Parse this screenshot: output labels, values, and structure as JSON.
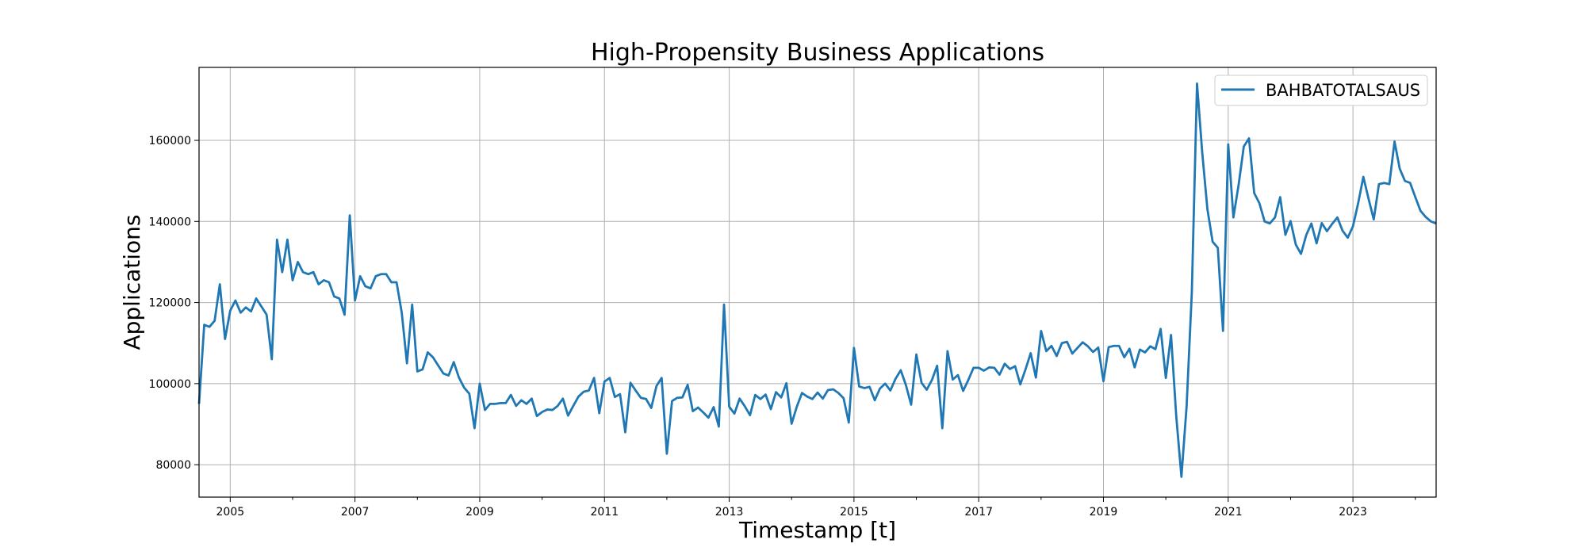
{
  "chart_data": {
    "type": "line",
    "title": "High-Propensity Business Applications",
    "xlabel": "Timestamp [t]",
    "ylabel": "Applications",
    "grid": true,
    "legend_placement": "top-right",
    "xlim": [
      "2004-07",
      "2024-05"
    ],
    "ylim": [
      72000,
      178000
    ],
    "x_ticks": [
      "2005",
      "2007",
      "2009",
      "2011",
      "2013",
      "2015",
      "2017",
      "2019",
      "2021",
      "2023"
    ],
    "y_ticks": [
      80000,
      100000,
      120000,
      140000,
      160000
    ],
    "series": [
      {
        "name": "BAHBATOTALSAUS",
        "color": "#1f77b4",
        "x": [
          "2004-07",
          "2004-08",
          "2004-09",
          "2004-10",
          "2004-11",
          "2004-12",
          "2005-01",
          "2005-02",
          "2005-03",
          "2005-04",
          "2005-05",
          "2005-06",
          "2005-07",
          "2005-08",
          "2005-09",
          "2005-10",
          "2005-11",
          "2005-12",
          "2006-01",
          "2006-02",
          "2006-03",
          "2006-04",
          "2006-05",
          "2006-06",
          "2006-07",
          "2006-08",
          "2006-09",
          "2006-10",
          "2006-11",
          "2006-12",
          "2007-01",
          "2007-02",
          "2007-03",
          "2007-04",
          "2007-05",
          "2007-06",
          "2007-07",
          "2007-08",
          "2007-09",
          "2007-10",
          "2007-11",
          "2007-12",
          "2008-01",
          "2008-02",
          "2008-03",
          "2008-04",
          "2008-05",
          "2008-06",
          "2008-07",
          "2008-08",
          "2008-09",
          "2008-10",
          "2008-11",
          "2008-12",
          "2009-01",
          "2009-02",
          "2009-03",
          "2009-04",
          "2009-05",
          "2009-06",
          "2009-07",
          "2009-08",
          "2009-09",
          "2009-10",
          "2009-11",
          "2009-12",
          "2010-01",
          "2010-02",
          "2010-03",
          "2010-04",
          "2010-05",
          "2010-06",
          "2010-07",
          "2010-08",
          "2010-09",
          "2010-10",
          "2010-11",
          "2010-12",
          "2011-01",
          "2011-02",
          "2011-03",
          "2011-04",
          "2011-05",
          "2011-06",
          "2011-07",
          "2011-08",
          "2011-09",
          "2011-10",
          "2011-11",
          "2011-12",
          "2012-01",
          "2012-02",
          "2012-03",
          "2012-04",
          "2012-05",
          "2012-06",
          "2012-07",
          "2012-08",
          "2012-09",
          "2012-10",
          "2012-11",
          "2012-12",
          "2013-01",
          "2013-02",
          "2013-03",
          "2013-04",
          "2013-05",
          "2013-06",
          "2013-07",
          "2013-08",
          "2013-09",
          "2013-10",
          "2013-11",
          "2013-12",
          "2014-01",
          "2014-02",
          "2014-03",
          "2014-04",
          "2014-05",
          "2014-06",
          "2014-07",
          "2014-08",
          "2014-09",
          "2014-10",
          "2014-11",
          "2014-12",
          "2015-01",
          "2015-02",
          "2015-03",
          "2015-04",
          "2015-05",
          "2015-06",
          "2015-07",
          "2015-08",
          "2015-09",
          "2015-10",
          "2015-11",
          "2015-12",
          "2016-01",
          "2016-02",
          "2016-03",
          "2016-04",
          "2016-05",
          "2016-06",
          "2016-07",
          "2016-08",
          "2016-09",
          "2016-10",
          "2016-11",
          "2016-12",
          "2017-01",
          "2017-02",
          "2017-03",
          "2017-04",
          "2017-05",
          "2017-06",
          "2017-07",
          "2017-08",
          "2017-09",
          "2017-10",
          "2017-11",
          "2017-12",
          "2018-01",
          "2018-02",
          "2018-03",
          "2018-04",
          "2018-05",
          "2018-06",
          "2018-07",
          "2018-08",
          "2018-09",
          "2018-10",
          "2018-11",
          "2018-12",
          "2019-01",
          "2019-02",
          "2019-03",
          "2019-04",
          "2019-05",
          "2019-06",
          "2019-07",
          "2019-08",
          "2019-09",
          "2019-10",
          "2019-11",
          "2019-12",
          "2020-01",
          "2020-02",
          "2020-03",
          "2020-04",
          "2020-05",
          "2020-06",
          "2020-07",
          "2020-08",
          "2020-09",
          "2020-10",
          "2020-11",
          "2020-12",
          "2021-01",
          "2021-02",
          "2021-03",
          "2021-04",
          "2021-05",
          "2021-06",
          "2021-07",
          "2021-08",
          "2021-09",
          "2021-10",
          "2021-11",
          "2021-12",
          "2022-01",
          "2022-02",
          "2022-03",
          "2022-04",
          "2022-05",
          "2022-06",
          "2022-07",
          "2022-08",
          "2022-09",
          "2022-10",
          "2022-11",
          "2022-12",
          "2023-01",
          "2023-02",
          "2023-03",
          "2023-04",
          "2023-05",
          "2023-06",
          "2023-07",
          "2023-08",
          "2023-09",
          "2023-10",
          "2023-11",
          "2023-12",
          "2024-01",
          "2024-02",
          "2024-03",
          "2024-04",
          "2024-05"
        ],
        "values": [
          95000,
          114500,
          114000,
          115500,
          124500,
          111000,
          118000,
          120500,
          117500,
          118800,
          117800,
          121000,
          119000,
          117000,
          106000,
          135500,
          127500,
          135500,
          125500,
          130000,
          127500,
          127000,
          127500,
          124500,
          125500,
          125000,
          121500,
          121000,
          117000,
          141500,
          120500,
          126500,
          124000,
          123500,
          126500,
          127000,
          127000,
          125000,
          125000,
          117500,
          105000,
          119500,
          103000,
          103500,
          107700,
          106500,
          104500,
          102500,
          102000,
          105300,
          101500,
          99000,
          97500,
          89000,
          100000,
          93500,
          95000,
          95000,
          95200,
          95200,
          97200,
          94500,
          95900,
          95000,
          96300,
          92000,
          93000,
          93600,
          93500,
          94500,
          96300,
          92100,
          94500,
          96800,
          98000,
          98300,
          101400,
          92700,
          100500,
          101400,
          96700,
          97400,
          88000,
          100200,
          98300,
          96500,
          96200,
          94000,
          99400,
          101400,
          82700,
          95700,
          96500,
          96600,
          99700,
          93200,
          94100,
          92900,
          91600,
          94200,
          89400,
          119500,
          94300,
          92600,
          96300,
          94400,
          92200,
          97200,
          96200,
          97300,
          93700,
          97900,
          96600,
          100100,
          90100,
          94300,
          97700,
          96800,
          96200,
          97800,
          96300,
          98400,
          98600,
          97700,
          96400,
          90400,
          108800,
          99300,
          98900,
          99200,
          95900,
          98800,
          100000,
          98300,
          101200,
          103300,
          99600,
          94800,
          107200,
          100200,
          98500,
          100900,
          104400,
          89000,
          108000,
          101000,
          102100,
          98200,
          100900,
          103900,
          103900,
          103200,
          104000,
          103900,
          102200,
          104900,
          103600,
          104300,
          99800,
          103500,
          107500,
          101500,
          113000,
          108000,
          109300,
          106800,
          110000,
          110300,
          107400,
          108800,
          110200,
          109200,
          107800,
          108900,
          100600,
          109000,
          109300,
          109300,
          106500,
          108600,
          104000,
          108400,
          107700,
          109200,
          108500,
          113500,
          101400,
          112000,
          92000,
          77000,
          94500,
          122500,
          174000,
          157000,
          143000,
          135000,
          133500,
          113000,
          159000,
          141000,
          149000,
          158500,
          160500,
          147000,
          144500,
          140000,
          139500,
          141000,
          146000,
          136700,
          140100,
          134300,
          132000,
          136600,
          139500,
          134600,
          139600,
          137600,
          139400,
          141000,
          137700,
          136000,
          138800,
          144500,
          151000,
          145600,
          140500,
          149200,
          149500,
          149200,
          159700,
          153000,
          150000,
          149500,
          146000,
          142600,
          141100,
          140000,
          139500
        ]
      }
    ]
  }
}
